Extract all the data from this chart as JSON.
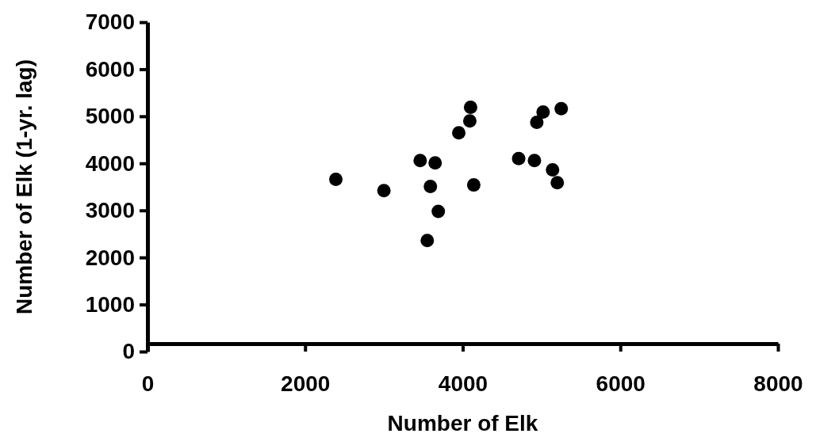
{
  "chart_data": {
    "type": "scatter",
    "xlabel": "Number of Elk",
    "ylabel": "Number of Elk (1-yr. lag)",
    "x": [
      2390,
      3000,
      3460,
      3650,
      3590,
      3690,
      3550,
      3950,
      4090,
      4100,
      4140,
      4710,
      4910,
      4940,
      5020,
      5250,
      5140,
      5200
    ],
    "series": [
      {
        "color": "#000000",
        "values": [
          3660,
          3420,
          4060,
          4010,
          3510,
          2980,
          2360,
          4650,
          4900,
          5190,
          3540,
          4100,
          4060,
          4870,
          5090,
          5160,
          3860,
          3590
        ]
      }
    ],
    "xlim": [
      0,
      8000
    ],
    "xticks": [
      0,
      2000,
      4000,
      6000,
      8000
    ],
    "ylim": [
      0,
      7000
    ],
    "yticks": [
      0,
      1000,
      2000,
      3000,
      4000,
      5000,
      6000,
      7000
    ],
    "marker": "circle",
    "grid": false
  }
}
